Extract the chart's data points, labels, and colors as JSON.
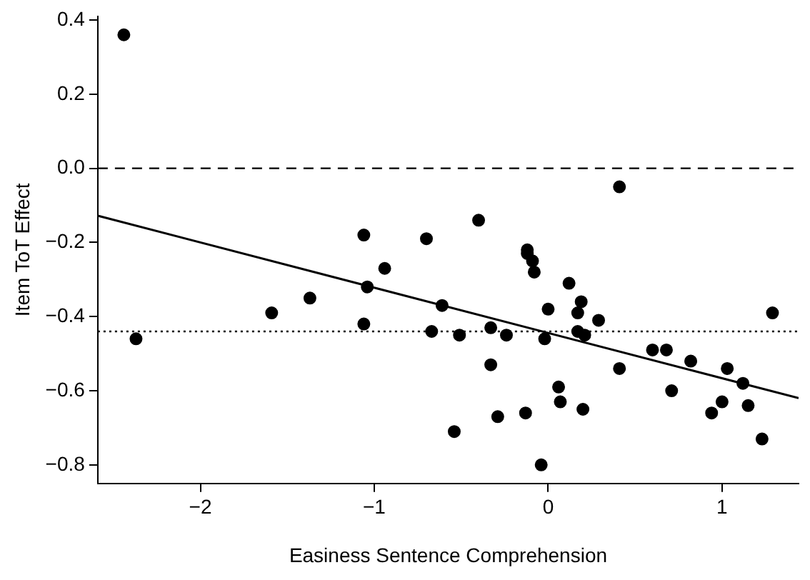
{
  "chart_data": {
    "type": "scatter",
    "xlabel": "Easiness Sentence Comprehension",
    "ylabel": "Item ToT Effect",
    "xlim": [
      -2.59,
      1.44
    ],
    "ylim": [
      -0.85,
      0.41
    ],
    "xticks": [
      -2,
      -1,
      0,
      1
    ],
    "yticks": [
      {
        "value": -0.8,
        "label": "−0.8"
      },
      {
        "value": -0.6,
        "label": "−0.6"
      },
      {
        "value": -0.4,
        "label": "−0.4"
      },
      {
        "value": -0.2,
        "label": "−0.2"
      },
      {
        "value": 0,
        "label": "0.0"
      },
      {
        "value": 0.2,
        "label": "0.2"
      },
      {
        "value": 0.4,
        "label": "0.4"
      }
    ],
    "grid": false,
    "legend": false,
    "marker": "circle",
    "series": [
      {
        "color": "#000000",
        "x": [
          -2.44,
          -2.37,
          -1.59,
          -1.37,
          -1.06,
          -0.94,
          -1.04,
          -1.06,
          -0.7,
          -0.4,
          -0.61,
          -0.67,
          -0.51,
          -0.54,
          -0.33,
          -0.24,
          -0.33,
          -0.29,
          -0.13,
          -0.12,
          -0.12,
          -0.09,
          -0.08,
          -0.04,
          -0.02,
          0.0,
          0.06,
          0.07,
          0.12,
          0.17,
          0.19,
          0.17,
          0.21,
          0.2,
          0.29,
          0.41,
          0.41,
          0.6,
          0.68,
          0.71,
          0.82,
          0.94,
          1.0,
          1.03,
          1.12,
          1.15,
          1.23,
          1.29
        ],
        "values": [
          0.36,
          -0.46,
          -0.39,
          -0.35,
          -0.18,
          -0.27,
          -0.32,
          -0.42,
          -0.19,
          -0.14,
          -0.37,
          -0.44,
          -0.45,
          -0.71,
          -0.43,
          -0.45,
          -0.53,
          -0.67,
          -0.66,
          -0.22,
          -0.23,
          -0.25,
          -0.28,
          -0.8,
          -0.46,
          -0.38,
          -0.59,
          -0.63,
          -0.31,
          -0.39,
          -0.36,
          -0.44,
          -0.45,
          -0.65,
          -0.41,
          -0.05,
          -0.54,
          -0.49,
          -0.49,
          -0.6,
          -0.52,
          -0.66,
          -0.63,
          -0.54,
          -0.58,
          -0.64,
          -0.73,
          -0.39
        ]
      },
      {
        "type": "line",
        "color": "#000000",
        "marker": "none",
        "line_style": "solid",
        "x": [
          -2.59,
          1.44
        ],
        "values": [
          -0.128,
          -0.62
        ]
      }
    ],
    "ref_lines": [
      {
        "axis": "y",
        "value": 0,
        "line_style": "dashed",
        "color": "#000000"
      },
      {
        "axis": "y",
        "value": -0.44,
        "line_style": "dotted",
        "color": "#000000"
      }
    ]
  }
}
